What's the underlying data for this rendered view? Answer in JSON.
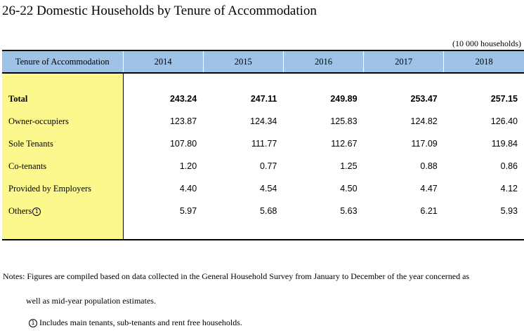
{
  "title": "26-22  Domestic Households by Tenure of Accommodation",
  "unit": "(10 000 households)",
  "table": {
    "header_label": "Tenure of Accommodation",
    "years": [
      "2014",
      "2015",
      "2016",
      "2017",
      "2018"
    ],
    "rows": [
      {
        "label": "Total",
        "values": [
          "243.24",
          "247.11",
          "249.89",
          "253.47",
          "257.15"
        ]
      },
      {
        "label": "Owner-occupiers",
        "values": [
          "123.87",
          "124.34",
          "125.83",
          "124.82",
          "126.40"
        ]
      },
      {
        "label": "Sole Tenants",
        "values": [
          "107.80",
          "111.77",
          "112.67",
          "117.09",
          "119.84"
        ]
      },
      {
        "label": "Co-tenants",
        "values": [
          "1.20",
          "0.77",
          "1.25",
          "0.88",
          "0.86"
        ]
      },
      {
        "label": "Provided by Employers",
        "values": [
          "4.40",
          "4.54",
          "4.50",
          "4.47",
          "4.12"
        ]
      },
      {
        "label": "Others",
        "values": [
          "5.97",
          "5.68",
          "5.63",
          "6.21",
          "5.93"
        ]
      }
    ]
  },
  "footnote_marker": "1",
  "notes": {
    "line1": "Notes: Figures are compiled based on data collected in the General Household Survey from January to December of the year concerned as",
    "line2": "well as mid-year population estimates.",
    "line3": "Includes main tenants, sub-tenants and rent free households."
  }
}
